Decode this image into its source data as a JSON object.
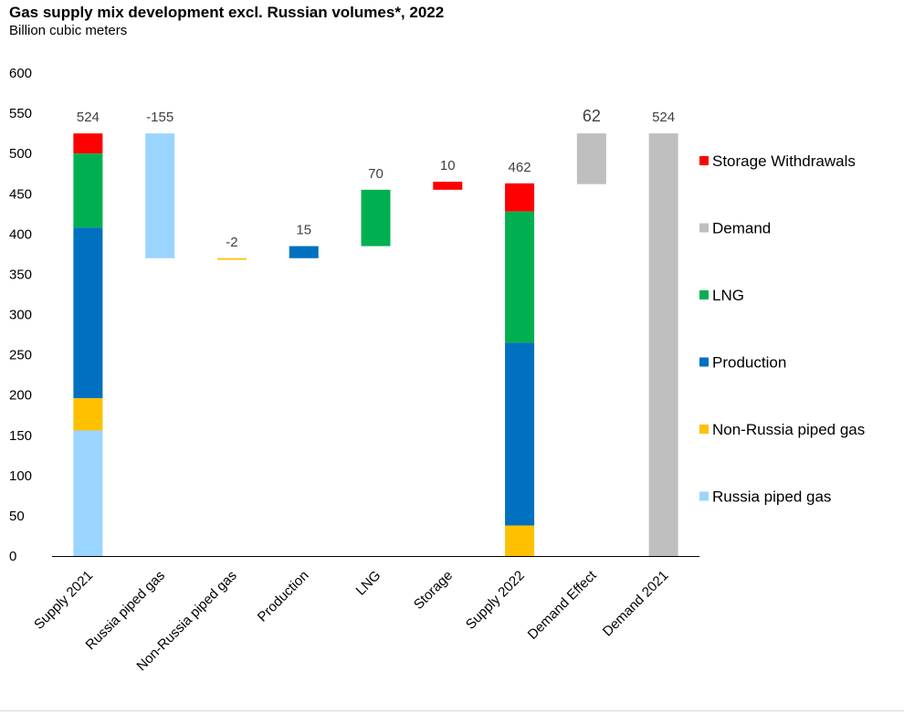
{
  "title": "Gas supply mix development excl. Russian volumes*, 2022",
  "subtitle": "Billion cubic meters",
  "chart_data": {
    "type": "bar",
    "subtype": "stacked-waterfall",
    "title": "Gas supply mix development excl. Russian volumes*, 2022",
    "subtitle": "Billion cubic meters",
    "ylim": [
      0,
      600
    ],
    "yticks": [
      0,
      50,
      100,
      150,
      200,
      250,
      300,
      350,
      400,
      450,
      500,
      550,
      600
    ],
    "grid": false,
    "legend_position": "right",
    "categories": [
      "Supply 2021",
      "Russia piped gas",
      "Non-Russia piped gas",
      "Production",
      "LNG",
      "Storage",
      "Supply 2022",
      "Demand Effect",
      "Demand 2021"
    ],
    "total_labels": [
      "524",
      "-155",
      "-2",
      "15",
      "70",
      "10",
      "462",
      "62",
      "524"
    ],
    "series": [
      {
        "name": "Storage Withdrawals",
        "color": "#FF0000",
        "segments": [
          [
            500,
            525
          ],
          null,
          null,
          null,
          null,
          [
            455,
            465
          ],
          [
            428,
            463
          ],
          null,
          null
        ]
      },
      {
        "name": "Demand",
        "color": "#BFBFBF",
        "segments": [
          null,
          null,
          null,
          null,
          null,
          null,
          null,
          [
            462,
            525
          ],
          [
            0,
            525
          ]
        ]
      },
      {
        "name": "LNG",
        "color": "#00B050",
        "segments": [
          [
            408,
            500
          ],
          null,
          null,
          null,
          [
            385,
            455
          ],
          null,
          [
            265,
            428
          ],
          null,
          null
        ]
      },
      {
        "name": "Production",
        "color": "#0070C0",
        "segments": [
          [
            196,
            408
          ],
          null,
          null,
          [
            370,
            385
          ],
          null,
          null,
          [
            38,
            265
          ],
          null,
          null
        ]
      },
      {
        "name": "Non-Russia piped gas",
        "color": "#FFC000",
        "segments": [
          [
            156,
            196
          ],
          null,
          [
            368,
            370
          ],
          null,
          null,
          null,
          [
            0,
            38
          ],
          null,
          null
        ]
      },
      {
        "name": "Russia piped gas",
        "color": "#99D5FF",
        "segments": [
          [
            0,
            156
          ],
          [
            370,
            525
          ],
          null,
          null,
          null,
          null,
          null,
          null,
          null
        ]
      }
    ]
  }
}
